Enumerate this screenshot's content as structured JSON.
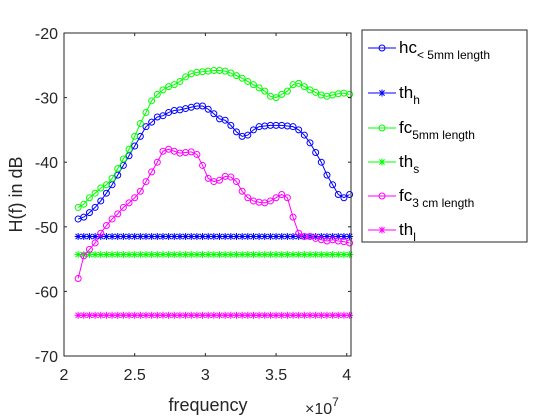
{
  "chart_data": {
    "type": "line",
    "xlabel": "frequency",
    "ylabel": "H(f) in dB",
    "x_exponent_label": "×10",
    "x_exponent_power": "7",
    "xlim": [
      2.0,
      4.03
    ],
    "ylim": [
      -70,
      -20
    ],
    "xticks": [
      2,
      2.5,
      3,
      3.5,
      4
    ],
    "xtick_labels": [
      "2",
      "2.5",
      "3",
      "3.5",
      "4"
    ],
    "yticks": [
      -70,
      -60,
      -50,
      -40,
      -30,
      -20
    ],
    "ytick_labels": [
      "-70",
      "-60",
      "-50",
      "-40",
      "-30",
      "-20"
    ],
    "grid": false,
    "legend_position": "outside-right",
    "series": [
      {
        "name_main": "hc",
        "name_sub": "< 5mm length",
        "color": "#0000ff",
        "marker": "circle",
        "x": [
          2.1,
          2.14,
          2.18,
          2.22,
          2.26,
          2.3,
          2.34,
          2.38,
          2.42,
          2.46,
          2.5,
          2.54,
          2.58,
          2.62,
          2.66,
          2.7,
          2.74,
          2.78,
          2.82,
          2.86,
          2.9,
          2.94,
          2.98,
          3.02,
          3.06,
          3.1,
          3.14,
          3.18,
          3.22,
          3.26,
          3.3,
          3.34,
          3.38,
          3.42,
          3.46,
          3.5,
          3.54,
          3.58,
          3.62,
          3.66,
          3.7,
          3.74,
          3.78,
          3.82,
          3.86,
          3.9,
          3.94,
          3.98,
          4.02
        ],
        "y": [
          -48.8,
          -48.5,
          -47.8,
          -47.0,
          -46.0,
          -44.8,
          -43.5,
          -42.0,
          -40.5,
          -39.0,
          -37.5,
          -36.0,
          -34.5,
          -33.8,
          -33.0,
          -32.8,
          -32.3,
          -32.0,
          -31.9,
          -31.7,
          -31.5,
          -31.3,
          -31.3,
          -31.8,
          -32.5,
          -33.3,
          -33.5,
          -34.3,
          -35.3,
          -36.0,
          -35.8,
          -35.0,
          -34.5,
          -34.4,
          -34.3,
          -34.3,
          -34.3,
          -34.4,
          -34.5,
          -35.0,
          -35.8,
          -37.0,
          -38.5,
          -40.0,
          -42.0,
          -43.5,
          -45.0,
          -45.5,
          -45.0
        ]
      },
      {
        "name_main": "th",
        "name_sub": "h",
        "color": "#0000ff",
        "marker": "star",
        "x": [
          2.1,
          2.14,
          2.18,
          2.22,
          2.26,
          2.3,
          2.34,
          2.38,
          2.42,
          2.46,
          2.5,
          2.54,
          2.58,
          2.62,
          2.66,
          2.7,
          2.74,
          2.78,
          2.82,
          2.86,
          2.9,
          2.94,
          2.98,
          3.02,
          3.06,
          3.1,
          3.14,
          3.18,
          3.22,
          3.26,
          3.3,
          3.34,
          3.38,
          3.42,
          3.46,
          3.5,
          3.54,
          3.58,
          3.62,
          3.66,
          3.7,
          3.74,
          3.78,
          3.82,
          3.86,
          3.9,
          3.94,
          3.98,
          4.02
        ],
        "y": [
          -51.5,
          -51.5,
          -51.5,
          -51.5,
          -51.5,
          -51.5,
          -51.5,
          -51.5,
          -51.5,
          -51.5,
          -51.5,
          -51.5,
          -51.5,
          -51.5,
          -51.5,
          -51.5,
          -51.5,
          -51.5,
          -51.5,
          -51.5,
          -51.5,
          -51.5,
          -51.5,
          -51.5,
          -51.5,
          -51.5,
          -51.5,
          -51.5,
          -51.5,
          -51.5,
          -51.5,
          -51.5,
          -51.5,
          -51.5,
          -51.5,
          -51.5,
          -51.5,
          -51.5,
          -51.5,
          -51.5,
          -51.5,
          -51.5,
          -51.5,
          -51.5,
          -51.5,
          -51.5,
          -51.5,
          -51.5,
          -51.5
        ]
      },
      {
        "name_main": "fc",
        "name_sub": "5mm length",
        "color": "#00ff00",
        "marker": "circle",
        "x": [
          2.1,
          2.14,
          2.18,
          2.22,
          2.26,
          2.3,
          2.34,
          2.38,
          2.42,
          2.46,
          2.5,
          2.54,
          2.58,
          2.62,
          2.66,
          2.7,
          2.74,
          2.78,
          2.82,
          2.86,
          2.9,
          2.94,
          2.98,
          3.02,
          3.06,
          3.1,
          3.14,
          3.18,
          3.22,
          3.26,
          3.3,
          3.34,
          3.38,
          3.42,
          3.46,
          3.5,
          3.54,
          3.58,
          3.62,
          3.66,
          3.7,
          3.74,
          3.78,
          3.82,
          3.86,
          3.9,
          3.94,
          3.98,
          4.02
        ],
        "y": [
          -47.0,
          -46.5,
          -45.5,
          -44.8,
          -44.0,
          -43.5,
          -42.5,
          -41.0,
          -39.5,
          -38.0,
          -36.0,
          -34.0,
          -32.3,
          -30.5,
          -29.5,
          -28.8,
          -28.3,
          -28.0,
          -27.5,
          -26.8,
          -26.3,
          -26.1,
          -26.0,
          -25.9,
          -25.8,
          -25.8,
          -25.9,
          -26.2,
          -26.6,
          -27.0,
          -27.5,
          -28.0,
          -28.5,
          -29.0,
          -29.8,
          -30.0,
          -29.5,
          -29.0,
          -28.0,
          -27.8,
          -28.3,
          -28.8,
          -29.2,
          -29.6,
          -29.8,
          -29.6,
          -29.4,
          -29.3,
          -29.5
        ]
      },
      {
        "name_main": "th",
        "name_sub": "s",
        "color": "#00ff00",
        "marker": "star",
        "x": [
          2.1,
          2.14,
          2.18,
          2.22,
          2.26,
          2.3,
          2.34,
          2.38,
          2.42,
          2.46,
          2.5,
          2.54,
          2.58,
          2.62,
          2.66,
          2.7,
          2.74,
          2.78,
          2.82,
          2.86,
          2.9,
          2.94,
          2.98,
          3.02,
          3.06,
          3.1,
          3.14,
          3.18,
          3.22,
          3.26,
          3.3,
          3.34,
          3.38,
          3.42,
          3.46,
          3.5,
          3.54,
          3.58,
          3.62,
          3.66,
          3.7,
          3.74,
          3.78,
          3.82,
          3.86,
          3.9,
          3.94,
          3.98,
          4.02
        ],
        "y": [
          -54.3,
          -54.3,
          -54.3,
          -54.3,
          -54.3,
          -54.3,
          -54.3,
          -54.3,
          -54.3,
          -54.3,
          -54.3,
          -54.3,
          -54.3,
          -54.3,
          -54.3,
          -54.3,
          -54.3,
          -54.3,
          -54.3,
          -54.3,
          -54.3,
          -54.3,
          -54.3,
          -54.3,
          -54.3,
          -54.3,
          -54.3,
          -54.3,
          -54.3,
          -54.3,
          -54.3,
          -54.3,
          -54.3,
          -54.3,
          -54.3,
          -54.3,
          -54.3,
          -54.3,
          -54.3,
          -54.3,
          -54.3,
          -54.3,
          -54.3,
          -54.3,
          -54.3,
          -54.3,
          -54.3,
          -54.3,
          -54.3
        ]
      },
      {
        "name_main": "fc",
        "name_sub": "3 cm length",
        "color": "#ff00ff",
        "marker": "circle",
        "x": [
          2.1,
          2.14,
          2.18,
          2.22,
          2.26,
          2.3,
          2.34,
          2.38,
          2.42,
          2.46,
          2.5,
          2.54,
          2.58,
          2.62,
          2.66,
          2.7,
          2.74,
          2.78,
          2.82,
          2.86,
          2.9,
          2.94,
          2.98,
          3.02,
          3.06,
          3.1,
          3.14,
          3.18,
          3.22,
          3.26,
          3.3,
          3.34,
          3.38,
          3.42,
          3.46,
          3.5,
          3.54,
          3.58,
          3.62,
          3.66,
          3.7,
          3.74,
          3.78,
          3.82,
          3.86,
          3.9,
          3.94,
          3.98,
          4.02
        ],
        "y": [
          -58.0,
          -54.5,
          -53.5,
          -52.5,
          -51.0,
          -49.8,
          -48.8,
          -48.0,
          -47.0,
          -46.3,
          -45.5,
          -44.5,
          -43.0,
          -41.5,
          -40.0,
          -38.3,
          -38.0,
          -38.3,
          -38.6,
          -38.5,
          -38.4,
          -38.8,
          -40.5,
          -42.5,
          -43.0,
          -42.8,
          -42.2,
          -42.3,
          -43.0,
          -44.5,
          -45.5,
          -46.0,
          -46.2,
          -46.3,
          -46.0,
          -45.5,
          -45.0,
          -45.5,
          -48.5,
          -51.0,
          -51.5,
          -51.5,
          -51.8,
          -52.0,
          -52.2,
          -52.0,
          -52.2,
          -52.3,
          -52.5
        ]
      },
      {
        "name_main": "th",
        "name_sub": "l",
        "color": "#ff00ff",
        "marker": "star",
        "x": [
          2.1,
          2.14,
          2.18,
          2.22,
          2.26,
          2.3,
          2.34,
          2.38,
          2.42,
          2.46,
          2.5,
          2.54,
          2.58,
          2.62,
          2.66,
          2.7,
          2.74,
          2.78,
          2.82,
          2.86,
          2.9,
          2.94,
          2.98,
          3.02,
          3.06,
          3.1,
          3.14,
          3.18,
          3.22,
          3.26,
          3.3,
          3.34,
          3.38,
          3.42,
          3.46,
          3.5,
          3.54,
          3.58,
          3.62,
          3.66,
          3.7,
          3.74,
          3.78,
          3.82,
          3.86,
          3.9,
          3.94,
          3.98,
          4.02
        ],
        "y": [
          -63.7,
          -63.7,
          -63.7,
          -63.7,
          -63.7,
          -63.7,
          -63.7,
          -63.7,
          -63.7,
          -63.7,
          -63.7,
          -63.7,
          -63.7,
          -63.7,
          -63.7,
          -63.7,
          -63.7,
          -63.7,
          -63.7,
          -63.7,
          -63.7,
          -63.7,
          -63.7,
          -63.7,
          -63.7,
          -63.7,
          -63.7,
          -63.7,
          -63.7,
          -63.7,
          -63.7,
          -63.7,
          -63.7,
          -63.7,
          -63.7,
          -63.7,
          -63.7,
          -63.7,
          -63.7,
          -63.7,
          -63.7,
          -63.7,
          -63.7,
          -63.7,
          -63.7,
          -63.7,
          -63.7,
          -63.7,
          -63.7
        ]
      }
    ]
  }
}
